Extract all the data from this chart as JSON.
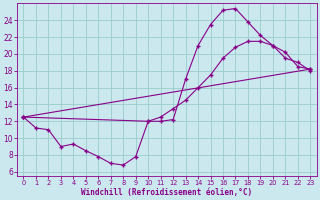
{
  "background_color": "#cce8ef",
  "grid_color": "#99cccc",
  "line_color": "#880088",
  "xlim": [
    -0.5,
    23.5
  ],
  "ylim": [
    5.5,
    26
  ],
  "xlabel": "Windchill (Refroidissement éolien,°C)",
  "yticks": [
    6,
    8,
    10,
    12,
    14,
    16,
    18,
    20,
    22,
    24
  ],
  "xticks": [
    0,
    1,
    2,
    3,
    4,
    5,
    6,
    7,
    8,
    9,
    10,
    11,
    12,
    13,
    14,
    15,
    16,
    17,
    18,
    19,
    20,
    21,
    22,
    23
  ],
  "curve1_x": [
    0,
    1,
    2,
    3,
    4,
    5,
    6,
    7,
    8,
    9,
    10,
    11,
    12,
    13,
    14,
    15,
    16,
    17,
    18,
    19,
    20,
    21,
    22,
    23
  ],
  "curve1_y": [
    12.5,
    11.2,
    11.0,
    9.0,
    9.3,
    8.5,
    7.8,
    7.0,
    6.8,
    7.8,
    12.0,
    12.0,
    12.2,
    17.0,
    21.0,
    23.5,
    25.2,
    25.4,
    23.8,
    22.2,
    21.0,
    19.5,
    19.0,
    18.0
  ],
  "curve2_x": [
    0,
    10,
    11,
    12,
    13,
    14,
    15,
    16,
    17,
    18,
    19,
    20,
    21,
    22,
    23
  ],
  "curve2_y": [
    12.5,
    12.0,
    12.5,
    13.5,
    14.5,
    16.0,
    17.5,
    19.5,
    20.8,
    21.5,
    21.5,
    21.0,
    20.2,
    18.5,
    18.2
  ],
  "curve3_x": [
    0,
    23
  ],
  "curve3_y": [
    12.5,
    18.2
  ]
}
